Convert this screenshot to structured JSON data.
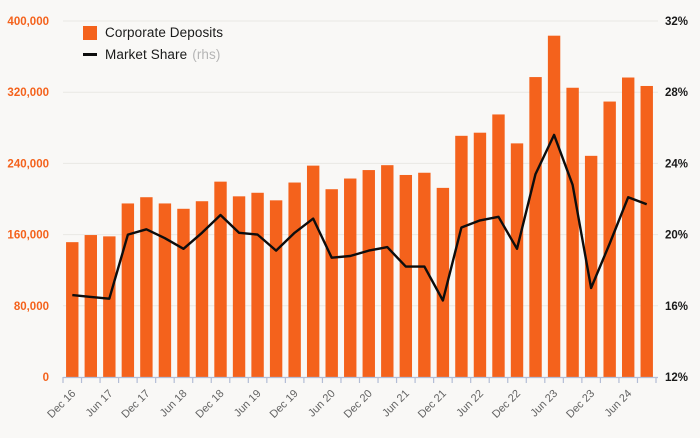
{
  "legend": {
    "bar_label": "Corporate Deposits",
    "line_label": "Market Share",
    "line_label_suffix": "(rhs)"
  },
  "chart_data": {
    "type": "bar+line combo, quarterly bars with semi-annual x tick labels",
    "x_tick_labels": [
      "Dec 16",
      "Jun 17",
      "Dec 17",
      "Jun 18",
      "Dec 18",
      "Jun 19",
      "Dec 19",
      "Jun 20",
      "Dec 20",
      "Jun 21",
      "Dec 21",
      "Jun 22",
      "Dec 22",
      "Jun 23",
      "Dec 23",
      "Jun 24"
    ],
    "x_label_every_n_bars": 2,
    "bar_series": {
      "name": "Corporate Deposits",
      "yaxis": "left",
      "values": [
        151500,
        159500,
        158000,
        195000,
        202000,
        195000,
        189000,
        197500,
        219500,
        203000,
        207000,
        198500,
        218500,
        237500,
        211000,
        223000,
        232500,
        238000,
        227000,
        229500,
        212500,
        271000,
        274500,
        295000,
        262500,
        337000,
        383500,
        325000,
        248500,
        309500,
        336500,
        327000
      ]
    },
    "line_series": {
      "name": "Market Share (rhs)",
      "yaxis": "right",
      "values": [
        16.6,
        16.5,
        16.4,
        20.0,
        20.3,
        19.8,
        19.2,
        20.1,
        21.1,
        20.1,
        20.0,
        19.1,
        20.1,
        20.9,
        18.7,
        18.8,
        19.1,
        19.3,
        18.2,
        18.2,
        16.3,
        20.4,
        20.8,
        21.0,
        19.2,
        23.4,
        25.6,
        22.8,
        17.0,
        19.5,
        22.1,
        21.7
      ]
    },
    "left_axis": {
      "min": 0,
      "max": 400000,
      "tick_step": 80000,
      "tick_labels": [
        "0",
        "80,000",
        "160,000",
        "240,000",
        "320,000",
        "400,000"
      ]
    },
    "right_axis": {
      "min": 12,
      "max": 32,
      "tick_step": 4,
      "tick_labels": [
        "12%",
        "16%",
        "20%",
        "24%",
        "28%",
        "32%"
      ]
    },
    "grid": "horizontal",
    "legend_position": "top-left",
    "colors": {
      "bar": "#f4621c",
      "line": "#0d0d0d",
      "left_axis_labels": "#f4621c",
      "right_axis_labels": "#1a1a1a",
      "x_labels": "#636363",
      "axis_line": "#b3bdd6",
      "gridline": "#e9e8e4",
      "background": "#f9f8f6",
      "legend_text": "#1a1a1a",
      "legend_muted": "#b5b5b5"
    }
  }
}
